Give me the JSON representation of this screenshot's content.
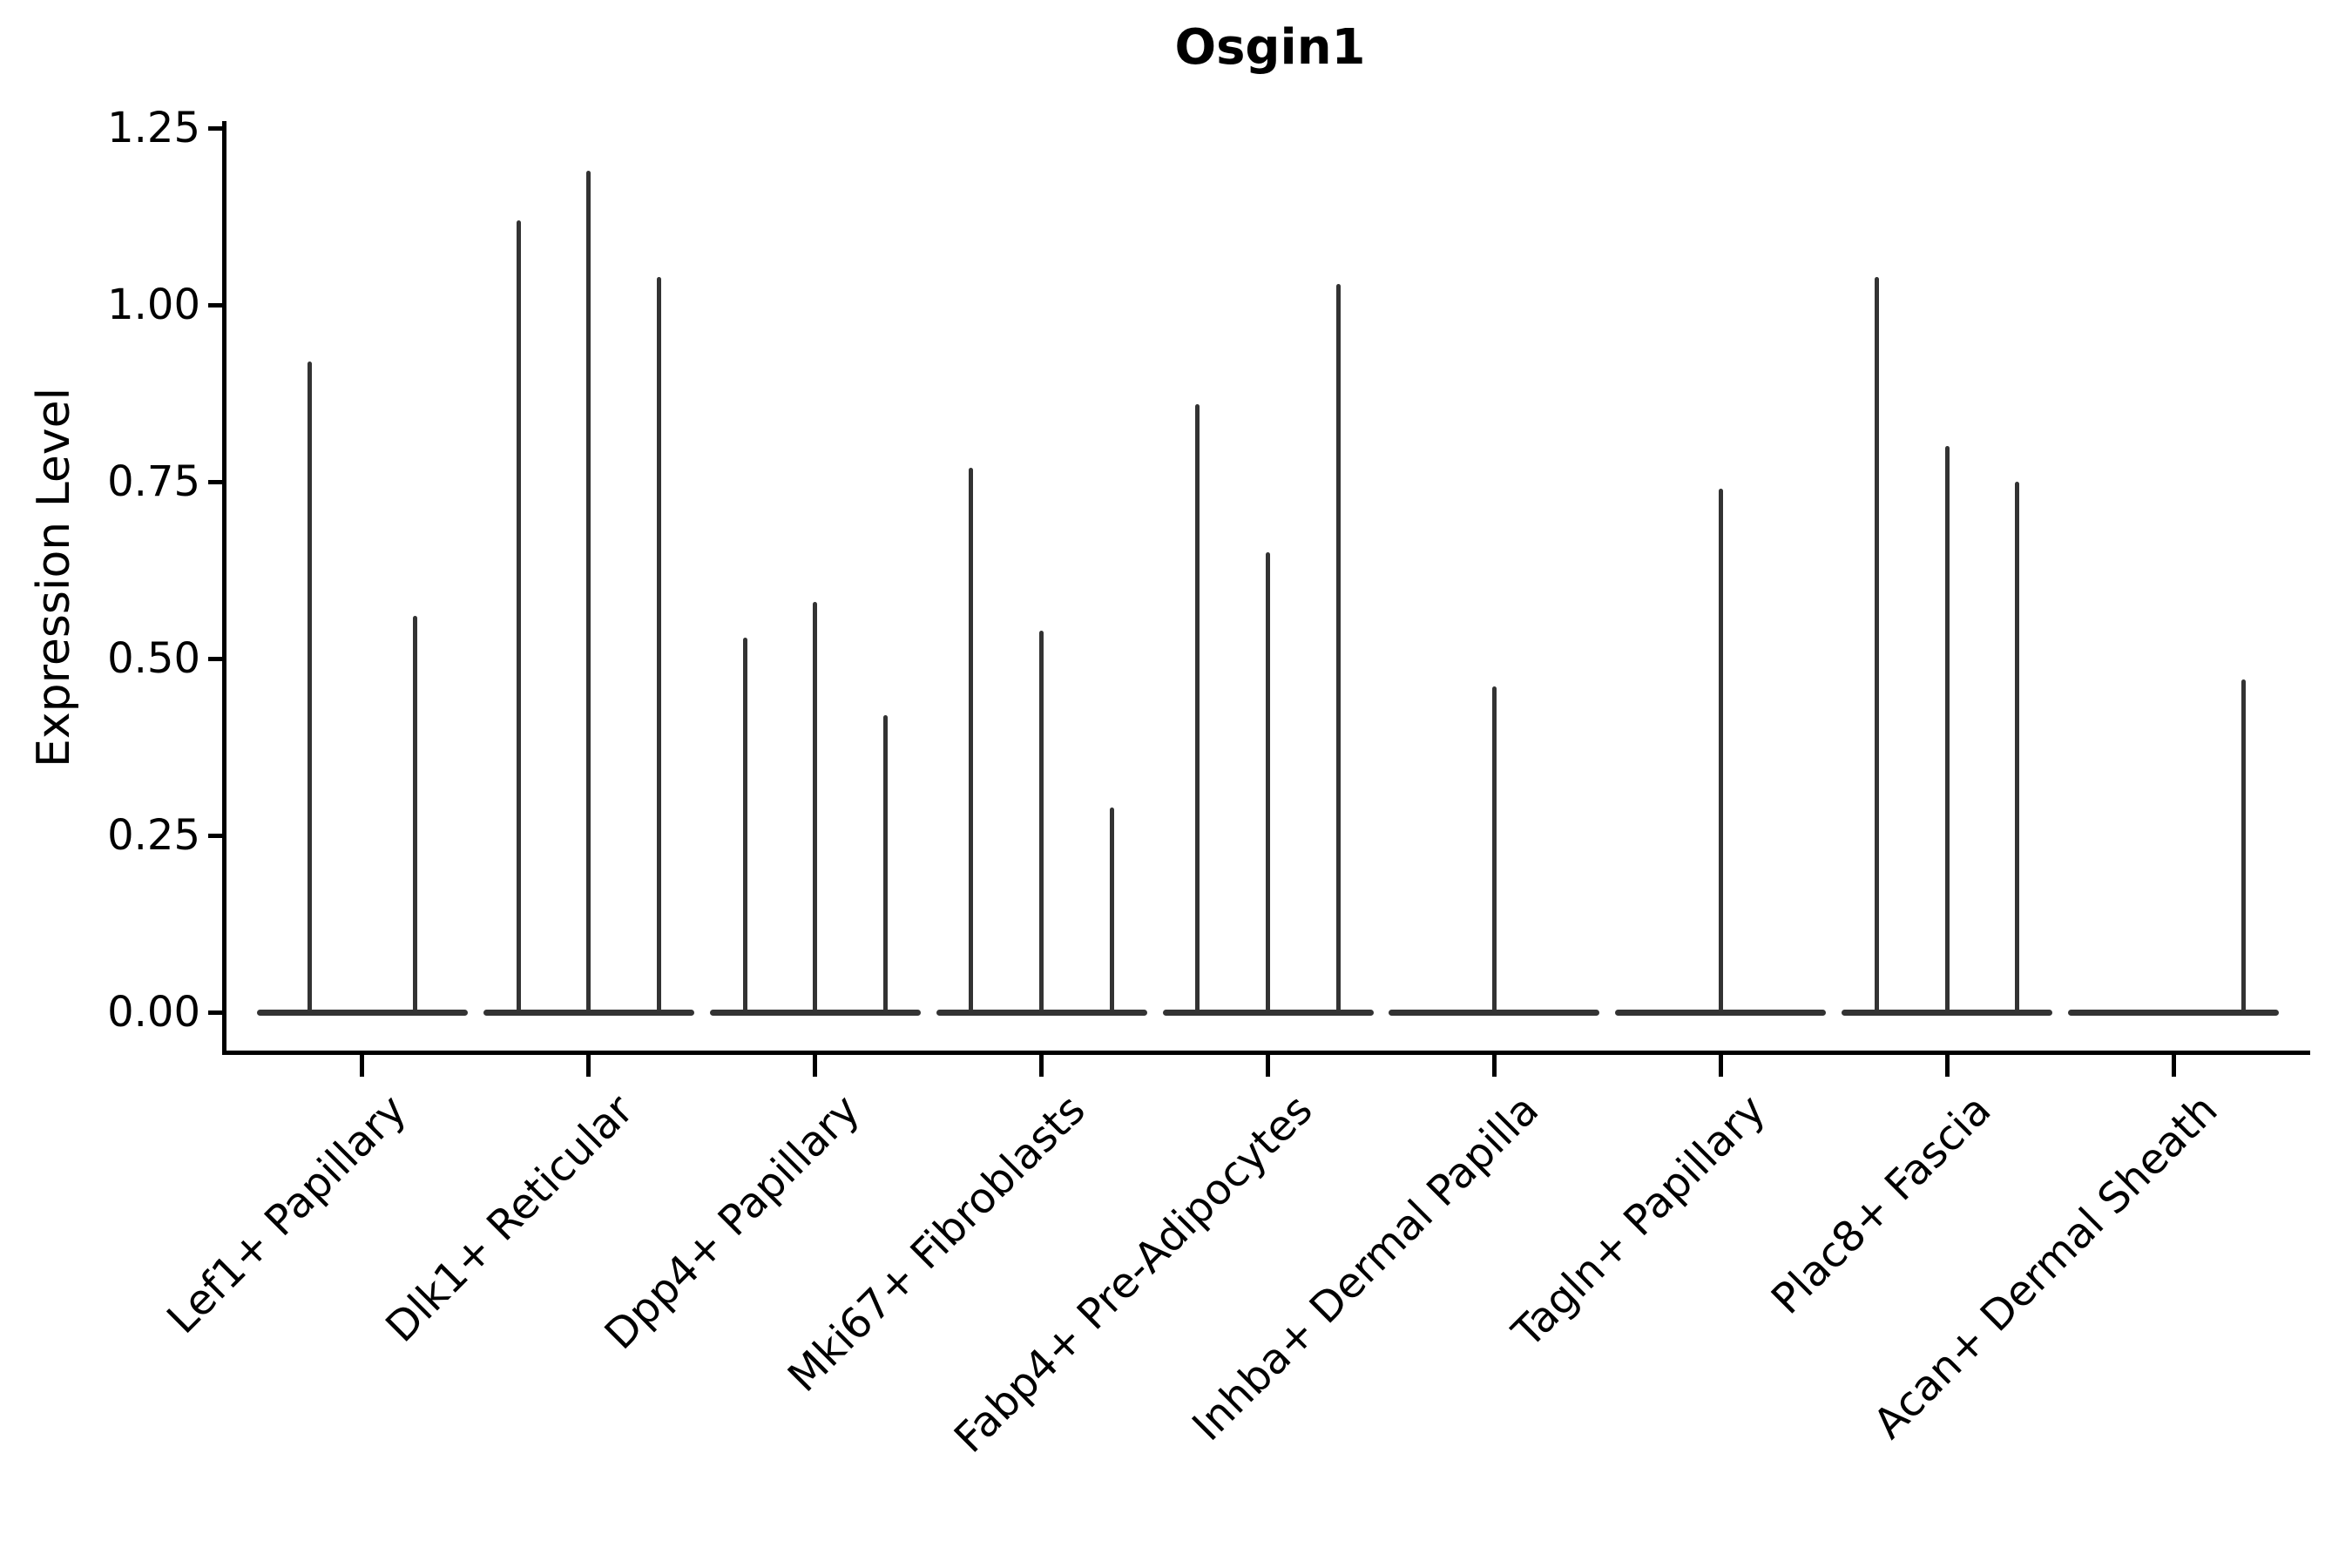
{
  "figure": {
    "title": "Osgin1",
    "ylabel": "Expression Level"
  },
  "chart_data": {
    "type": "violin",
    "title": "Osgin1",
    "xlabel": "",
    "ylabel": "Expression Level",
    "ylim": [
      -0.06,
      1.26
    ],
    "yticks": [
      0.0,
      0.25,
      0.5,
      0.75,
      1.0,
      1.25
    ],
    "ytick_labels": [
      "0.00",
      "0.25",
      "0.50",
      "0.75",
      "1.00",
      "1.25"
    ],
    "grid": false,
    "legend": "none",
    "description": "Violin plot of Osgin1 expression per fibroblast cell type; violins are near-zero flat bases with thin spikes reaching the maximum expression value of each sub-violin.",
    "categories": [
      "Lef1+ Papillary",
      "Dlk1+ Reticular",
      "Dpp4+ Papillary",
      "Mki67+ Fibroblasts",
      "Fabp4+ Pre-Adipocytes",
      "Inhba+ Dermal Papilla",
      "Tagln+ Papillary",
      "Plac8+ Fascia",
      "Acan+ Dermal Sheath"
    ],
    "violins": [
      {
        "category": "Lef1+ Papillary",
        "spike_max_values": [
          0.92,
          0.56
        ]
      },
      {
        "category": "Dlk1+ Reticular",
        "spike_max_values": [
          1.12,
          1.19,
          1.04
        ]
      },
      {
        "category": "Dpp4+ Papillary",
        "spike_max_values": [
          0.53,
          0.58,
          0.42
        ]
      },
      {
        "category": "Mki67+ Fibroblasts",
        "spike_max_values": [
          0.77,
          0.54,
          0.29
        ]
      },
      {
        "category": "Fabp4+ Pre-Adipocytes",
        "spike_max_values": [
          0.86,
          0.65,
          1.03
        ]
      },
      {
        "category": "Inhba+ Dermal Papilla",
        "spike_max_values": [
          0.46
        ]
      },
      {
        "category": "Tagln+ Papillary",
        "spike_max_values": [
          0.74
        ]
      },
      {
        "category": "Plac8+ Fascia",
        "spike_max_values": [
          1.04,
          0.8,
          0.75
        ]
      },
      {
        "category": "Acan+ Dermal Sheath",
        "spike_max_values": [
          0,
          0,
          0.47
        ]
      }
    ],
    "colors": {
      "violin": "#333333",
      "axis": "#000000",
      "text": "#000000",
      "background": "#ffffff"
    }
  }
}
